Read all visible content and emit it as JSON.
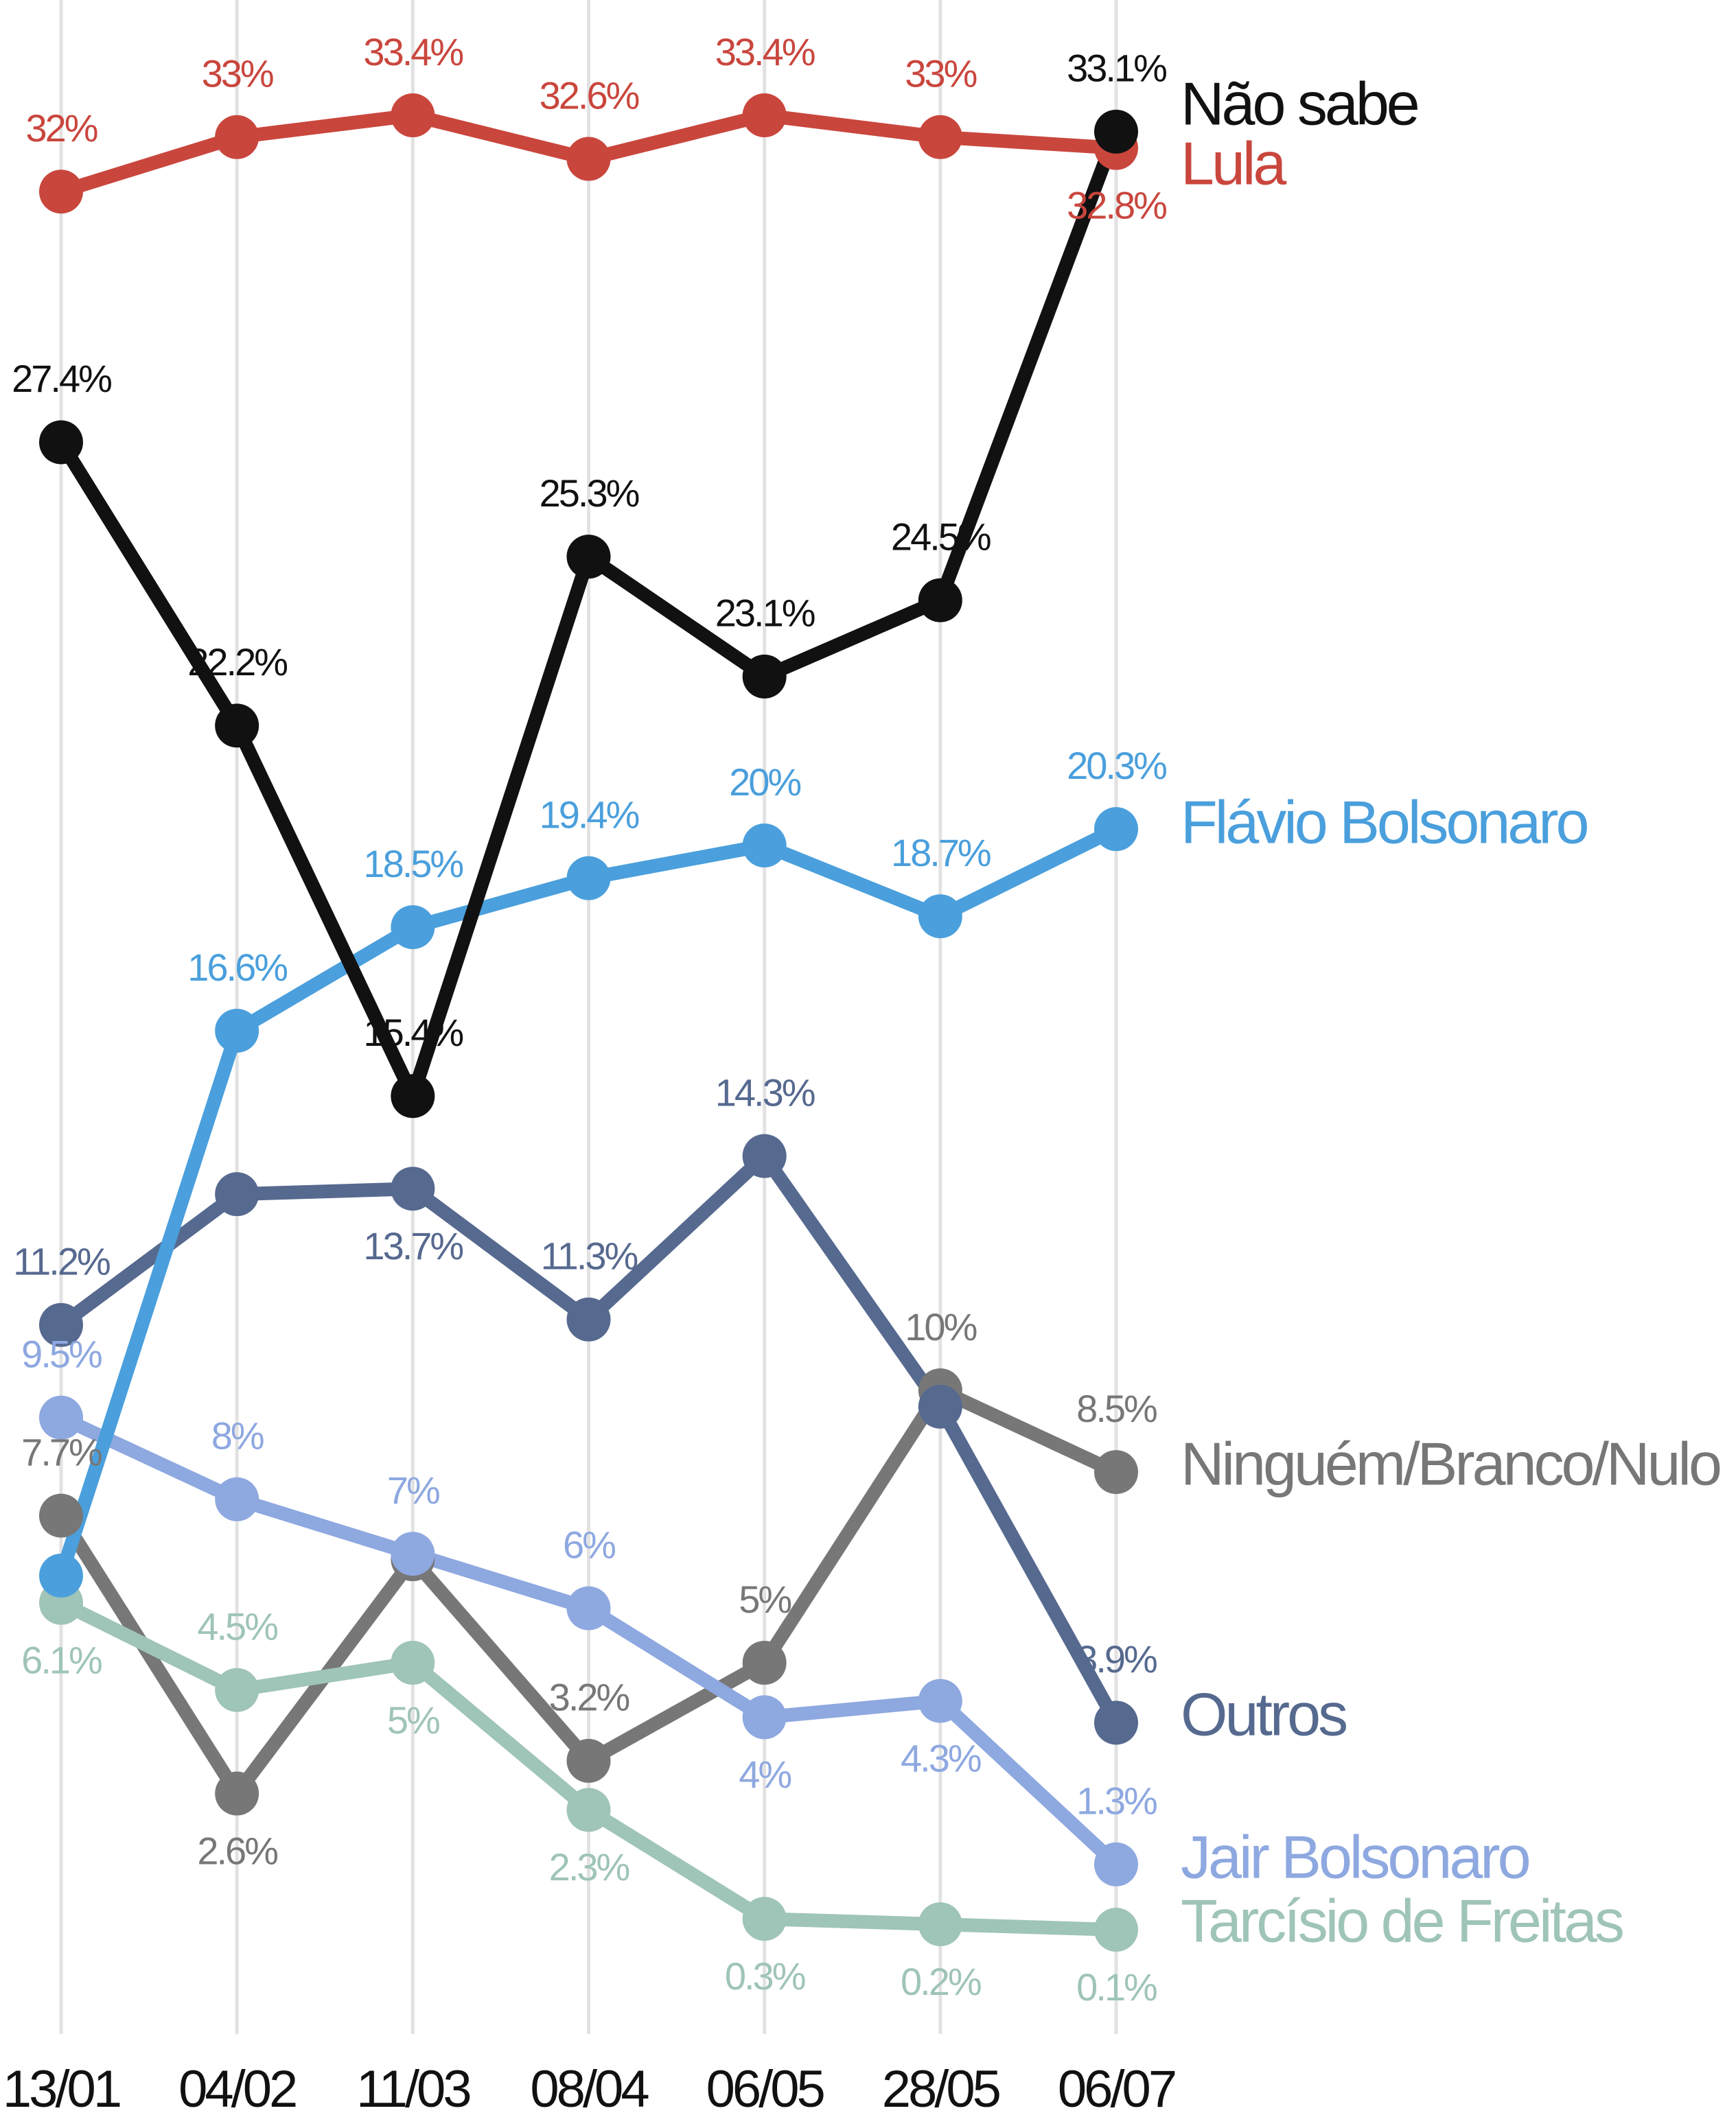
{
  "chart_data": {
    "type": "line",
    "categories": [
      "13/01",
      "04/02",
      "11/03",
      "08/04",
      "06/05",
      "28/05",
      "06/07"
    ],
    "series": [
      {
        "name": "Lula",
        "color": "#c9463d",
        "values": [
          32,
          33,
          33.4,
          32.6,
          33.4,
          33,
          32.8
        ],
        "value_labels": [
          "32%",
          "33%",
          "33.4%",
          "32.6%",
          "33.4%",
          "33%",
          "32.8%"
        ]
      },
      {
        "name": "Ninguém/Branco/Nulo",
        "color": "#777777",
        "values": [
          7.7,
          2.6,
          6.9,
          3.2,
          5,
          10,
          8.5
        ],
        "value_labels": [
          "7.7%",
          "2.6%",
          null,
          "3.2%",
          "5%",
          "10%",
          "8.5%"
        ]
      },
      {
        "name": "Tarcísio de Freitas",
        "color": "#9fc4b8",
        "values": [
          6.1,
          4.5,
          5,
          2.3,
          0.3,
          0.2,
          0.1
        ],
        "value_labels": [
          "6.1%",
          "4.5%",
          "5%",
          "2.3%",
          "0.3%",
          "0.2%",
          "0.1%"
        ]
      },
      {
        "name": "Jair Bolsonaro",
        "color": "#8ea8e0",
        "values": [
          9.5,
          8,
          7,
          6,
          4,
          4.3,
          1.3
        ],
        "value_labels": [
          "9.5%",
          "8%",
          "7%",
          "6%",
          "4%",
          "4.3%",
          "1.3%"
        ]
      },
      {
        "name": "Outros",
        "color": "#56698f",
        "values": [
          11.2,
          13.6,
          13.7,
          11.3,
          14.3,
          9.7,
          3.9
        ],
        "value_labels": [
          "11.2%",
          null,
          "13.7%",
          "11.3%",
          "14.3%",
          null,
          "3.9%"
        ]
      },
      {
        "name": "Flávio Bolsonaro",
        "color": "#4a9fdc",
        "values": [
          6.6,
          16.6,
          18.5,
          19.4,
          20,
          18.7,
          20.3
        ],
        "value_labels": [
          null,
          "16.6%",
          "18.5%",
          "19.4%",
          "20%",
          "18.7%",
          "20.3%"
        ]
      },
      {
        "name": "Não sabe",
        "color": "#111111",
        "values": [
          27.4,
          22.2,
          15.4,
          25.3,
          23.1,
          24.5,
          33.1
        ],
        "value_labels": [
          "27.4%",
          "22.2%",
          "15.4%",
          "25.3%",
          "23.1%",
          "24.5%",
          "33.1%"
        ]
      }
    ],
    "ylim": [
      0,
      35.5
    ]
  }
}
